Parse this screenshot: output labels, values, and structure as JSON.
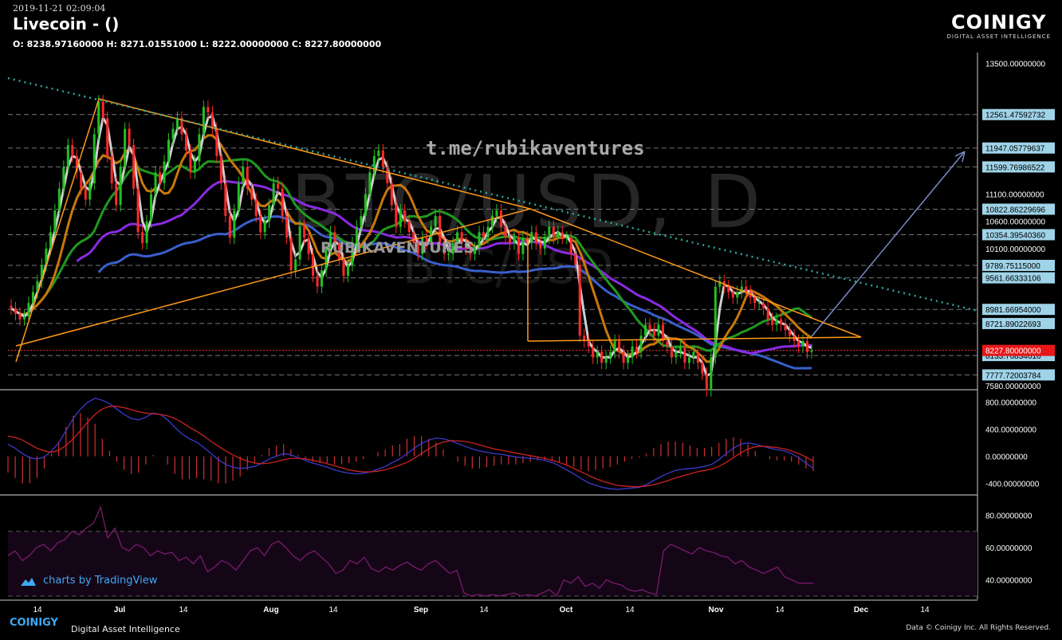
{
  "header": {
    "timestamp": "2019-11-21 02:09:04",
    "title": "Livecoin -  ()",
    "ohlc": "O: 8238.97160000 H: 8271.01551000 L: 8222.00000000 C: 8227.80000000"
  },
  "brand": {
    "logo_main": "COINIGY",
    "logo_sub": "DIGITAL ASSET INTELLIGENCE"
  },
  "watermarks": {
    "channel": "t.me/rubikaventures",
    "name": "RUBIKAVENTURES",
    "symbol": "BTC/USD, D",
    "symbol_sub": "BTC/USD"
  },
  "tradingview": {
    "label": "charts by TradingView"
  },
  "footer": {
    "logo": "COINIGY",
    "subtitle": "Digital Asset Intelligence",
    "copyright": "Data © Coinigy Inc.  All Rights Reserved."
  },
  "colors": {
    "up": "#22c022",
    "down": "#ff2a2a",
    "orange_line": "#ff9a1a",
    "trend_dots": "#2aa89a",
    "ma_white": "#cfcfcf",
    "ma_brown": "#c8780a",
    "ma_green": "#1f9a1f",
    "ma_purple": "#8a2be2",
    "ma_blue": "#3a5fcd",
    "label_bg": "#9fd3e8",
    "macd_line": "#3a3acd",
    "signal_line": "#cc2222",
    "rsi_line": "#7a1a6e"
  },
  "chart_data": [
    {
      "type": "candlestick",
      "name": "price",
      "x_ticks": [
        "14",
        "Jul",
        "14",
        "Aug",
        "14",
        "Sep",
        "14",
        "Oct",
        "14",
        "Nov",
        "14",
        "Dec",
        "14"
      ],
      "y_ticks": [
        13500,
        11100,
        10600,
        10100,
        8100,
        7580
      ],
      "y_tick_labels": [
        "13500.00000000",
        "11100.00000000",
        "10600.00000000",
        "10100.00000000",
        "8100.00000000",
        "7580.00000000"
      ],
      "ylim": [
        7520,
        13700
      ],
      "levels": [
        {
          "label": "12561.47592732",
          "value": 12561.48
        },
        {
          "label": "11947.05779637",
          "value": 11947.06
        },
        {
          "label": "11599.76986522",
          "value": 11599.77
        },
        {
          "label": "10822.86229696",
          "value": 10822.86
        },
        {
          "label": "10354.39540360",
          "value": 10354.4
        },
        {
          "label": "9789.75115000",
          "value": 9789.75
        },
        {
          "label": "9561.66333106",
          "value": 9561.66
        },
        {
          "label": "8981.66954000",
          "value": 8981.67
        },
        {
          "label": "8721.89022693",
          "value": 8721.89
        },
        {
          "label": "8133.76834616",
          "value": 8133.77
        },
        {
          "label": "7777.72003784",
          "value": 7777.72
        }
      ],
      "last_price": {
        "label": "8227.80000000",
        "value": 8227.8
      },
      "close": [
        9000,
        8900,
        8800,
        8850,
        9100,
        9300,
        9500,
        9800,
        10100,
        10400,
        10800,
        11200,
        11600,
        12000,
        11800,
        11500,
        11200,
        11000,
        11300,
        12200,
        12800,
        12500,
        11800,
        11300,
        10900,
        11600,
        12300,
        12000,
        11200,
        10400,
        10200,
        10600,
        11100,
        11500,
        11300,
        11700,
        12100,
        12300,
        12500,
        12200,
        11900,
        11500,
        11700,
        12200,
        12700,
        12600,
        12300,
        11800,
        11300,
        10700,
        10300,
        10800,
        11300,
        11600,
        11200,
        11000,
        10700,
        10400,
        10600,
        10900,
        11300,
        11200,
        10700,
        10300,
        9700,
        9900,
        10500,
        10300,
        10000,
        9600,
        9400,
        9700,
        10100,
        10400,
        10200,
        9900,
        9600,
        9800,
        10200,
        10500,
        10700,
        11100,
        11500,
        11800,
        11900,
        11600,
        11300,
        10900,
        10500,
        10800,
        10600,
        10400,
        10200,
        10000,
        10300,
        10200,
        10500,
        10700,
        10200,
        10000,
        10000,
        10200,
        10400,
        10200,
        10100,
        10000,
        10100,
        10400,
        10300,
        10500,
        10700,
        10800,
        10500,
        10300,
        10200,
        10300,
        10000,
        10300,
        10200,
        10400,
        10200,
        10100,
        10300,
        10500,
        10300,
        10400,
        10300,
        10300,
        10000,
        9800,
        8500,
        8400,
        8300,
        8100,
        8200,
        8000,
        8100,
        8200,
        8400,
        8200,
        8000,
        8100,
        8300,
        8200,
        8500,
        8700,
        8600,
        8500,
        8700,
        8400,
        8300,
        8100,
        8200,
        8300,
        8000,
        8100,
        8200,
        8000,
        7800,
        7500,
        8100,
        9400,
        9500,
        9400,
        9300,
        9200,
        9300,
        9400,
        9300,
        9200,
        9100,
        9100,
        9000,
        8800,
        8700,
        8800,
        8700,
        8600,
        8500,
        8400,
        8300,
        8400,
        8200,
        8228
      ],
      "extra_candles": [
        12800,
        12600,
        9100,
        7300,
        10800,
        12000,
        11800,
        10400,
        8800,
        8200
      ]
    },
    {
      "type": "line",
      "name": "macd",
      "y_tick_labels": [
        "800.00000000",
        "400.00000000",
        "0.00000000",
        "-400.00000000"
      ],
      "ylim": [
        -560,
        950
      ],
      "macd": [
        180,
        120,
        40,
        -20,
        -40,
        -10,
        80,
        200,
        380,
        560,
        700,
        800,
        860,
        830,
        780,
        700,
        620,
        560,
        540,
        580,
        640,
        620,
        540,
        430,
        330,
        260,
        210,
        130,
        40,
        -50,
        -120,
        -160,
        -180,
        -170,
        -150,
        -100,
        -40,
        0,
        40,
        20,
        -20,
        -60,
        -100,
        -130,
        -160,
        -200,
        -230,
        -250,
        -260,
        -250,
        -230,
        -190,
        -150,
        -90,
        -40,
        40,
        120,
        190,
        240,
        270,
        260,
        230,
        190,
        150,
        110,
        80,
        60,
        40,
        30,
        10,
        -10,
        -20,
        -30,
        -40,
        -60,
        -90,
        -140,
        -200,
        -260,
        -330,
        -390,
        -430,
        -460,
        -480,
        -490,
        -480,
        -470,
        -460,
        -420,
        -360,
        -300,
        -250,
        -210,
        -190,
        -180,
        -170,
        -150,
        -120,
        -50,
        40,
        120,
        180,
        200,
        180,
        150,
        120,
        100,
        80,
        40,
        -20,
        -100,
        -180
      ],
      "signal": [
        300,
        280,
        240,
        180,
        120,
        80,
        60,
        90,
        160,
        260,
        380,
        510,
        620,
        700,
        740,
        740,
        720,
        690,
        660,
        640,
        630,
        620,
        600,
        560,
        500,
        430,
        370,
        300,
        220,
        150,
        80,
        20,
        -30,
        -70,
        -100,
        -110,
        -100,
        -80,
        -50,
        -30,
        -30,
        -40,
        -60,
        -80,
        -110,
        -140,
        -170,
        -200,
        -220,
        -230,
        -230,
        -220,
        -200,
        -170,
        -130,
        -90,
        -30,
        40,
        110,
        170,
        210,
        230,
        230,
        220,
        200,
        170,
        140,
        110,
        90,
        70,
        50,
        30,
        10,
        -10,
        -30,
        -60,
        -90,
        -130,
        -180,
        -230,
        -280,
        -330,
        -370,
        -400,
        -430,
        -440,
        -450,
        -450,
        -440,
        -420,
        -390,
        -360,
        -320,
        -290,
        -260,
        -230,
        -210,
        -190,
        -150,
        -90,
        -20,
        50,
        110,
        140,
        150,
        140,
        130,
        110,
        80,
        40,
        -10,
        -70
      ]
    },
    {
      "type": "line",
      "name": "rsi",
      "y_tick_labels": [
        "80.00000000",
        "60.00000000",
        "40.00000000"
      ],
      "ylim": [
        28,
        92
      ],
      "levels": [
        70,
        30
      ],
      "values": [
        55,
        58,
        52,
        55,
        60,
        62,
        58,
        63,
        65,
        70,
        68,
        72,
        75,
        85,
        66,
        72,
        60,
        58,
        62,
        60,
        55,
        58,
        56,
        57,
        52,
        54,
        50,
        55,
        45,
        48,
        52,
        50,
        46,
        52,
        58,
        60,
        55,
        62,
        64,
        60,
        55,
        52,
        56,
        58,
        54,
        50,
        44,
        46,
        52,
        50,
        54,
        47,
        45,
        48,
        46,
        49,
        51,
        48,
        46,
        50,
        52,
        48,
        44,
        46,
        32,
        30,
        31,
        30,
        31,
        30,
        31,
        32,
        30,
        31,
        30,
        32,
        34,
        30,
        40,
        38,
        42,
        36,
        38,
        35,
        40,
        38,
        37,
        34,
        33,
        34,
        32,
        31,
        58,
        62,
        60,
        58,
        56,
        60,
        58,
        57,
        55,
        54,
        50,
        52,
        48,
        46,
        44,
        46,
        48,
        42,
        40,
        38,
        38,
        38
      ]
    }
  ]
}
